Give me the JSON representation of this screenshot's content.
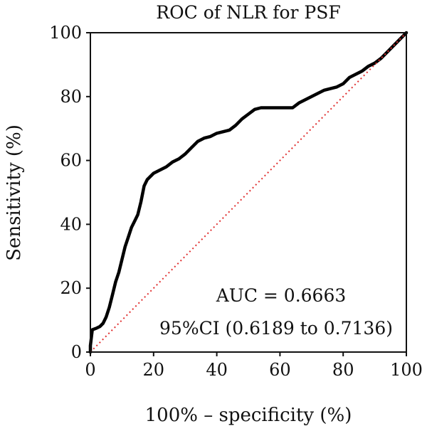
{
  "chart_data": {
    "type": "line",
    "title": "ROC of NLR for PSF",
    "xlabel": "100% – specificity (%)",
    "ylabel": "Sensitivity (%)",
    "xlim": [
      0,
      100
    ],
    "ylim": [
      0,
      100
    ],
    "x_ticks": [
      "0",
      "20",
      "40",
      "60",
      "80",
      "100"
    ],
    "y_ticks": [
      "0",
      "20",
      "40",
      "60",
      "80",
      "100"
    ],
    "grid": false,
    "legend": "none",
    "annotations": [
      "AUC = 0.6663",
      "95%CI (0.6189 to 0.7136)"
    ],
    "series": [
      {
        "color": "#000000",
        "x": [
          0,
          0,
          0.6,
          2,
          3,
          4,
          5,
          6,
          7,
          8,
          9,
          10,
          11,
          12,
          13,
          14,
          15,
          16,
          17,
          18,
          19,
          20,
          22,
          24,
          26,
          28,
          30,
          32,
          34,
          36,
          38,
          40,
          42,
          44,
          46,
          48,
          50,
          52,
          54,
          56,
          58,
          60,
          62,
          64,
          66,
          68,
          70,
          72,
          74,
          76,
          78,
          80,
          82,
          84,
          86,
          88,
          90,
          92,
          94,
          96,
          98,
          100
        ],
        "y": [
          0,
          2,
          7,
          7.5,
          8,
          9,
          11,
          14,
          18,
          22,
          25,
          29,
          33,
          36,
          39,
          41,
          43,
          47,
          52,
          54,
          55,
          56,
          57,
          58,
          59.5,
          60.5,
          62,
          64,
          66,
          67,
          67.5,
          68.5,
          69,
          69.5,
          71,
          73,
          74.5,
          76,
          76.5,
          76.5,
          76.5,
          76.5,
          76.5,
          76.5,
          78,
          79,
          80,
          81,
          82,
          82.5,
          83,
          84,
          86,
          87,
          88,
          89.5,
          90.5,
          92,
          94,
          96,
          98,
          100
        ]
      },
      {
        "color": "#e03030",
        "style": "dotted",
        "x": [
          0,
          100
        ],
        "y": [
          0,
          100
        ]
      }
    ]
  }
}
